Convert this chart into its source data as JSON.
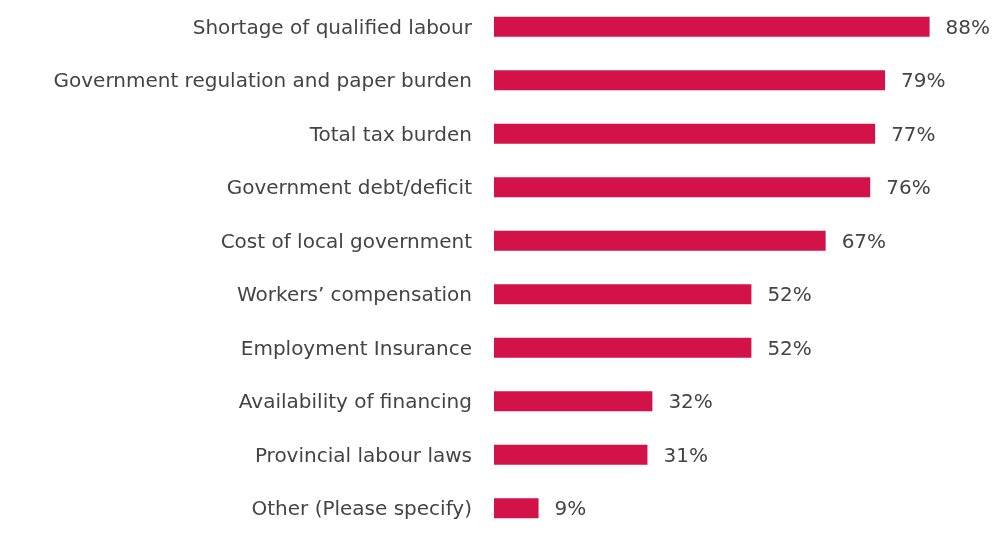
{
  "chart_data": {
    "type": "bar",
    "orientation": "horizontal",
    "categories": [
      "Shortage of qualified labour",
      "Government regulation and paper burden",
      "Total tax burden",
      "Government debt/deficit",
      "Cost of local government",
      "Workers’ compensation",
      "Employment Insurance",
      "Availability of financing",
      "Provincial labour laws",
      "Other (Please specify)"
    ],
    "values": [
      88,
      79,
      77,
      76,
      67,
      52,
      52,
      32,
      31,
      9
    ],
    "value_labels": [
      "88%",
      "79%",
      "77%",
      "76%",
      "67%",
      "52%",
      "52%",
      "32%",
      "31%",
      "9%"
    ],
    "color": "#d4124a"
  }
}
